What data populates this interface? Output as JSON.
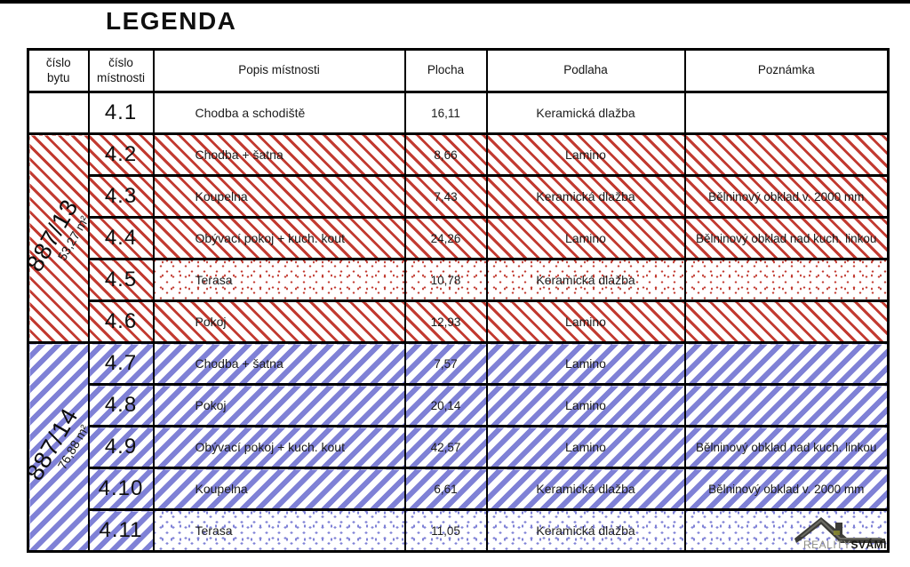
{
  "page": {
    "title": "LEGENDA"
  },
  "colors": {
    "red_hatch": "#c23a30",
    "blue_hatch": "#7f81d6",
    "line": "#000000"
  },
  "table": {
    "headers": {
      "cislo_bytu": "číslo\nbytu",
      "cislo_mistnosti": "číslo\nmístnosti",
      "popis": "Popis místnosti",
      "plocha": "Plocha",
      "podlaha": "Podlaha",
      "poznamka": "Poznámka"
    },
    "groups": [
      {
        "section": "white",
        "rows": [
          {
            "num": "4.1",
            "popis": "Chodba a schodiště",
            "plocha": "16,11",
            "podlaha": "Keramická dlažba",
            "poznamka": "",
            "pattern": "plain"
          }
        ]
      },
      {
        "section": "red",
        "label": "887/13",
        "area": "53,27 m²",
        "rows": [
          {
            "num": "4.2",
            "popis": "Chodba + šatna",
            "plocha": "8,66",
            "podlaha": "Lamino",
            "poznamka": "",
            "pattern": "hatch"
          },
          {
            "num": "4.3",
            "popis": "Koupelna",
            "plocha": "7,43",
            "podlaha": "Keramická dlažba",
            "poznamka": "Bělninový obklad v. 2000 mm",
            "pattern": "hatch"
          },
          {
            "num": "4.4",
            "popis": "Obývací pokoj + kuch. kout",
            "plocha": "24,26",
            "podlaha": "Lamino",
            "poznamka": "Bělninový obklad nad kuch. linkou",
            "pattern": "hatch"
          },
          {
            "num": "4.5",
            "popis": "Terasa",
            "plocha": "10,78",
            "podlaha": "Keramická dlažba",
            "poznamka": "",
            "pattern": "dots"
          },
          {
            "num": "4.6",
            "popis": "Pokoj",
            "plocha": "12,93",
            "podlaha": "Lamino",
            "poznamka": "",
            "pattern": "hatch"
          }
        ]
      },
      {
        "section": "blue",
        "label": "887/14",
        "area": "76,88 m²",
        "rows": [
          {
            "num": "4.7",
            "popis": "Chodba + šatna",
            "plocha": "7,57",
            "podlaha": "Lamino",
            "poznamka": "",
            "pattern": "hatch"
          },
          {
            "num": "4.8",
            "popis": "Pokoj",
            "plocha": "20,14",
            "podlaha": "Lamino",
            "poznamka": "",
            "pattern": "hatch"
          },
          {
            "num": "4.9",
            "popis": "Obývací pokoj + kuch. kout",
            "plocha": "42,57",
            "podlaha": "Lamino",
            "poznamka": "Bělninový obklad nad kuch. linkou",
            "pattern": "hatch"
          },
          {
            "num": "4.10",
            "popis": "Koupelna",
            "plocha": "6,61",
            "podlaha": "Keramická dlažba",
            "poznamka": "Bělninový obklad v. 2000 mm",
            "pattern": "hatch"
          },
          {
            "num": "4.11",
            "popis": "Terasa",
            "plocha": "11,05",
            "podlaha": "Keramická dlažba",
            "poznamka": "",
            "pattern": "dots"
          }
        ]
      }
    ]
  },
  "logo": {
    "reality": "REALITY",
    "svami": "SVÁMI"
  }
}
